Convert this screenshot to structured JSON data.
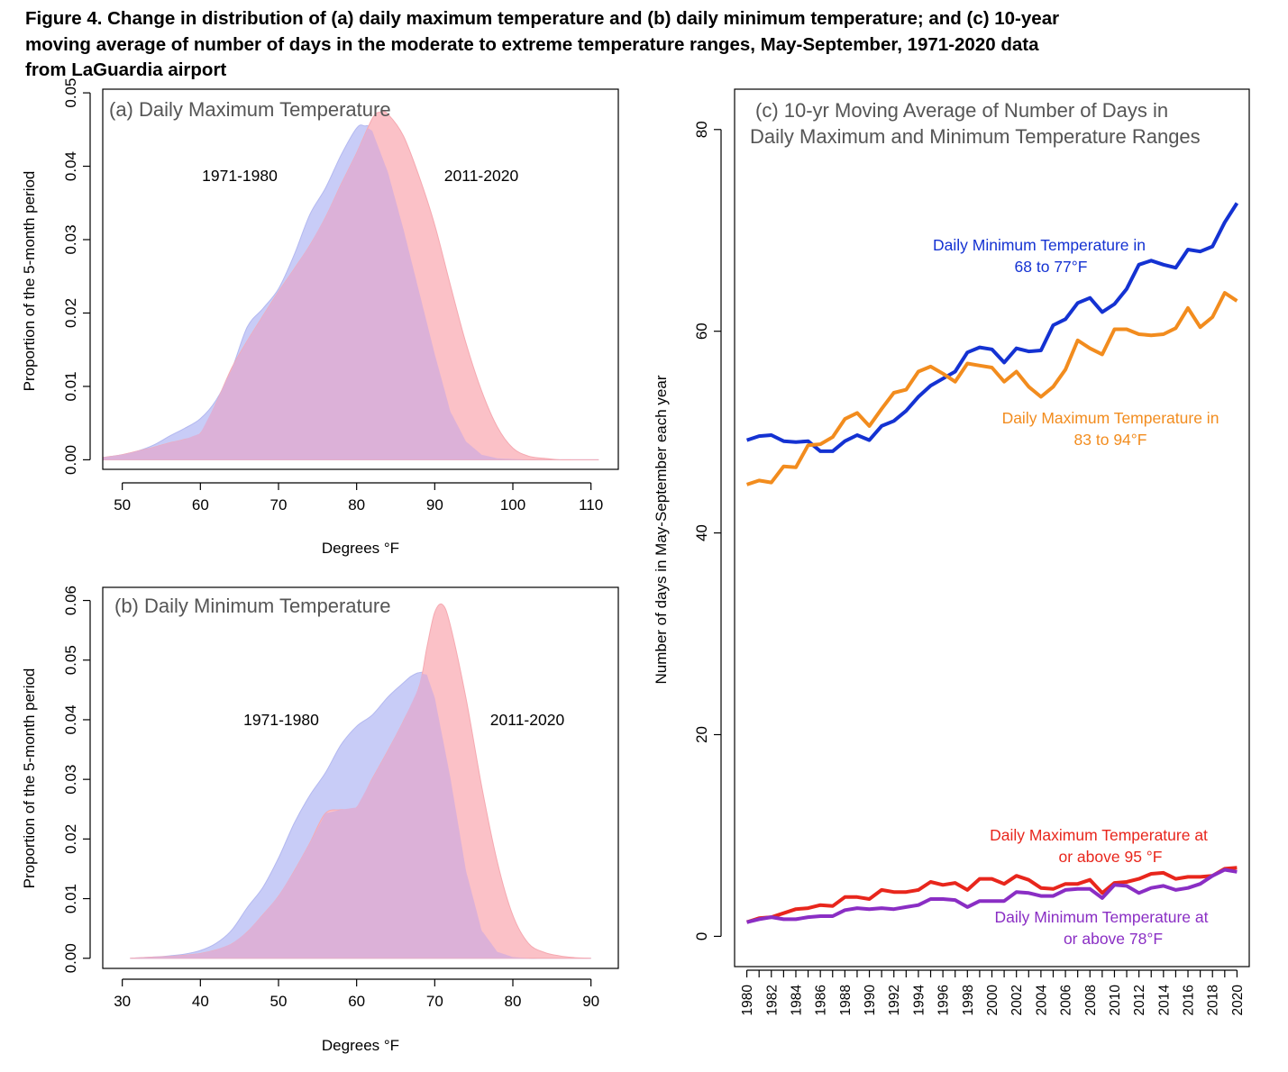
{
  "title": "Figure 4. Change in distribution of (a) daily maximum temperature and (b) daily minimum temperature; and (c) 10-year moving average of number of days in the moderate to extreme temperature ranges, May-September, 1971-2020 data from LaGuardia airport",
  "title_lines": [
    "Figure 4. Change in distribution of (a) daily maximum temperature and (b) daily minimum temperature; and (c) 10-year",
    "moving average of number of days in the moderate to extreme temperature ranges, May-September, 1971-2020 data",
    "from LaGuardia airport"
  ],
  "colors": {
    "early_fill": "#c8ccf7",
    "late_fill": "#fbc1c7",
    "overlap_fill": "#dcb1d8",
    "early_text": "#3a46c9",
    "late_text": "#de3a3a",
    "min_moderate": "#1432d2",
    "max_moderate": "#f28c1e",
    "max_extreme": "#e8261c",
    "min_extreme": "#8a2ec4"
  },
  "chart_data": [
    {
      "id": "a",
      "type": "area",
      "title": "(a) Daily Maximum Temperature",
      "xlabel": "Degrees °F",
      "ylabel": "Proportion of the 5-month period",
      "xlim": [
        47.5,
        113.5
      ],
      "ylim": [
        -0.0013,
        0.0505
      ],
      "xticks": [
        50,
        60,
        70,
        80,
        90,
        100,
        110
      ],
      "yticks": [
        0.0,
        0.01,
        0.02,
        0.03,
        0.04,
        0.05
      ],
      "ytick_labels": [
        "0.00",
        "0.01",
        "0.02",
        "0.03",
        "0.04",
        "0.05"
      ],
      "grid": false,
      "series": [
        {
          "name": "1971-1980",
          "x": [
            47.5,
            50,
            52,
            54,
            56,
            58,
            60,
            62,
            64,
            66,
            68,
            70,
            72,
            74,
            76,
            78,
            80,
            81,
            82,
            84,
            86,
            88,
            90,
            92,
            94,
            96,
            98,
            100,
            102,
            104,
            106,
            108,
            110,
            111
          ],
          "y": [
            0.0003,
            0.0007,
            0.0012,
            0.002,
            0.0032,
            0.0043,
            0.0056,
            0.0081,
            0.0123,
            0.0181,
            0.0206,
            0.0233,
            0.0279,
            0.0334,
            0.037,
            0.0415,
            0.0452,
            0.0455,
            0.0448,
            0.0392,
            0.0314,
            0.0229,
            0.0144,
            0.0066,
            0.0025,
            0.0007,
            0.0002,
            0.0001,
            0,
            0,
            0,
            0,
            0,
            0
          ]
        },
        {
          "name": "2011-2020",
          "x": [
            47.5,
            50,
            52,
            54,
            56,
            58,
            60,
            62,
            64,
            66,
            68,
            70,
            72,
            74,
            76,
            78,
            80,
            82,
            83,
            84,
            86,
            88,
            90,
            92,
            94,
            96,
            98,
            100,
            102,
            104,
            106,
            108,
            110,
            111
          ],
          "y": [
            0.0003,
            0.0007,
            0.0012,
            0.0017,
            0.0023,
            0.0028,
            0.0036,
            0.0077,
            0.0125,
            0.0162,
            0.0196,
            0.0229,
            0.026,
            0.0292,
            0.033,
            0.0375,
            0.0418,
            0.0465,
            0.0474,
            0.0471,
            0.0441,
            0.0386,
            0.032,
            0.0238,
            0.0159,
            0.0094,
            0.0045,
            0.0016,
            0.0005,
            0.0002,
            0,
            0,
            0,
            0
          ]
        }
      ],
      "annotations": [
        {
          "text": "1971-1980",
          "series": 0
        },
        {
          "text": "2011-2020",
          "series": 1
        }
      ]
    },
    {
      "id": "b",
      "type": "area",
      "title": "(b) Daily Minimum Temperature",
      "xlabel": "Degrees °F",
      "ylabel": "Proportion of the 5-month period",
      "xlim": [
        27.5,
        93.5
      ],
      "ylim": [
        -0.0017,
        0.0622
      ],
      "xticks": [
        30,
        40,
        50,
        60,
        70,
        80,
        90
      ],
      "yticks": [
        0.0,
        0.01,
        0.02,
        0.03,
        0.04,
        0.05,
        0.06
      ],
      "ytick_labels": [
        "0.00",
        "0.01",
        "0.02",
        "0.03",
        "0.04",
        "0.05",
        "0.06"
      ],
      "grid": false,
      "series": [
        {
          "name": "1971-1980",
          "x": [
            31,
            34,
            36,
            38,
            40,
            42,
            44,
            46,
            48,
            50,
            52,
            54,
            56,
            58,
            60,
            62,
            64,
            66,
            67,
            68,
            69,
            70,
            72,
            74,
            76,
            78,
            80,
            82,
            84,
            86,
            88,
            90
          ],
          "y": [
            0,
            0.0002,
            0.0004,
            0.0007,
            0.0013,
            0.0025,
            0.0047,
            0.0085,
            0.0119,
            0.0168,
            0.0226,
            0.0273,
            0.0311,
            0.0358,
            0.0389,
            0.0408,
            0.0438,
            0.0462,
            0.0473,
            0.0479,
            0.0475,
            0.0437,
            0.0303,
            0.0147,
            0.0047,
            0.0011,
            0.0002,
            0,
            0,
            0,
            0,
            0
          ]
        },
        {
          "name": "2011-2020",
          "x": [
            31,
            34,
            36,
            38,
            40,
            42,
            44,
            46,
            48,
            50,
            52,
            54,
            56,
            58,
            60,
            62,
            64,
            66,
            68,
            69,
            70,
            71,
            72,
            74,
            76,
            78,
            80,
            82,
            84,
            86,
            88,
            90
          ],
          "y": [
            0,
            0.0002,
            0.0003,
            0.0005,
            0.0008,
            0.0014,
            0.0024,
            0.0044,
            0.0073,
            0.0104,
            0.0146,
            0.0193,
            0.0243,
            0.0249,
            0.0253,
            0.0301,
            0.0348,
            0.0398,
            0.0455,
            0.0522,
            0.058,
            0.0593,
            0.0558,
            0.0436,
            0.0289,
            0.0162,
            0.0072,
            0.0025,
            0.001,
            0.0004,
            0.0001,
            0
          ]
        }
      ],
      "annotations": [
        {
          "text": "1971-1980",
          "series": 0
        },
        {
          "text": "2011-2020",
          "series": 1
        }
      ]
    },
    {
      "id": "c",
      "type": "line",
      "title_lines": [
        "(c) 10-yr Moving Average of Number of Days in",
        "Daily Maximum and Minimum Temperature Ranges"
      ],
      "xlabel": "",
      "ylabel": "Number of days in May-September each year",
      "xlim": [
        1979,
        2021
      ],
      "ylim": [
        -3,
        84
      ],
      "yticks": [
        0,
        20,
        40,
        60,
        80
      ],
      "x": [
        1980,
        1981,
        1982,
        1983,
        1984,
        1985,
        1986,
        1987,
        1988,
        1989,
        1990,
        1991,
        1992,
        1993,
        1994,
        1995,
        1996,
        1997,
        1998,
        1999,
        2000,
        2001,
        2002,
        2003,
        2004,
        2005,
        2006,
        2007,
        2008,
        2009,
        2010,
        2011,
        2012,
        2013,
        2014,
        2015,
        2016,
        2017,
        2018,
        2019,
        2020
      ],
      "xtick_labels": [
        "1980",
        "1982",
        "1984",
        "1986",
        "1988",
        "1990",
        "1992",
        "1994",
        "1996",
        "1998",
        "2000",
        "2002",
        "2004",
        "2006",
        "2008",
        "2010",
        "2012",
        "2014",
        "2016",
        "2018",
        "2020"
      ],
      "grid": false,
      "series": [
        {
          "name": "Daily Minimum Temperature in 68 to 77°F",
          "label_lines": [
            "Daily Minimum Temperature in",
            "68 to 77°F"
          ],
          "color_key": "min_moderate",
          "values": [
            49.2,
            49.6,
            49.7,
            49.1,
            49.0,
            49.1,
            48.1,
            48.1,
            49.1,
            49.7,
            49.2,
            50.6,
            51.1,
            52.1,
            53.5,
            54.6,
            55.3,
            56.0,
            57.9,
            58.4,
            58.2,
            56.9,
            58.3,
            58.0,
            58.1,
            60.6,
            61.2,
            62.8,
            63.3,
            61.9,
            62.7,
            64.2,
            66.6,
            67.0,
            66.6,
            66.3,
            68.1,
            67.9,
            68.4,
            70.8,
            72.7
          ]
        },
        {
          "name": "Daily Maximum Temperature in 83 to 94°F",
          "label_lines": [
            "Daily Maximum Temperature in",
            "83 to 94°F"
          ],
          "color_key": "max_moderate",
          "values": [
            44.8,
            45.2,
            45.0,
            46.6,
            46.5,
            48.7,
            48.8,
            49.5,
            51.3,
            51.9,
            50.6,
            52.3,
            53.9,
            54.2,
            56.0,
            56.5,
            55.8,
            55.0,
            56.8,
            56.6,
            56.4,
            55.0,
            56.0,
            54.5,
            53.5,
            54.5,
            56.2,
            59.1,
            58.3,
            57.7,
            60.2,
            60.2,
            59.7,
            59.6,
            59.7,
            60.3,
            62.3,
            60.4,
            61.4,
            63.8,
            63.0
          ]
        },
        {
          "name": "Daily Maximum Temperature at or above 95 °F",
          "label_lines": [
            "Daily Maximum Temperature at",
            "or above 95 °F"
          ],
          "color_key": "max_extreme",
          "values": [
            1.4,
            1.8,
            1.9,
            2.3,
            2.7,
            2.8,
            3.1,
            3.0,
            3.9,
            3.9,
            3.7,
            4.6,
            4.4,
            4.4,
            4.6,
            5.4,
            5.1,
            5.3,
            4.6,
            5.7,
            5.7,
            5.2,
            6.0,
            5.6,
            4.8,
            4.7,
            5.2,
            5.2,
            5.6,
            4.3,
            5.3,
            5.4,
            5.7,
            6.2,
            6.3,
            5.7,
            5.9,
            5.9,
            6.0,
            6.7,
            6.8
          ]
        },
        {
          "name": "Daily Minimum Temperature at or above 78°F",
          "label_lines": [
            "Daily Minimum Temperature at",
            "or above 78°F"
          ],
          "color_key": "min_extreme",
          "values": [
            1.4,
            1.7,
            1.9,
            1.7,
            1.7,
            1.9,
            2.0,
            2.0,
            2.6,
            2.8,
            2.7,
            2.8,
            2.7,
            2.9,
            3.1,
            3.7,
            3.7,
            3.6,
            2.9,
            3.5,
            3.5,
            3.5,
            4.4,
            4.3,
            4.0,
            4.0,
            4.6,
            4.7,
            4.7,
            3.8,
            5.1,
            5.0,
            4.3,
            4.8,
            5.0,
            4.6,
            4.8,
            5.2,
            6.0,
            6.6,
            6.4
          ]
        }
      ]
    }
  ]
}
